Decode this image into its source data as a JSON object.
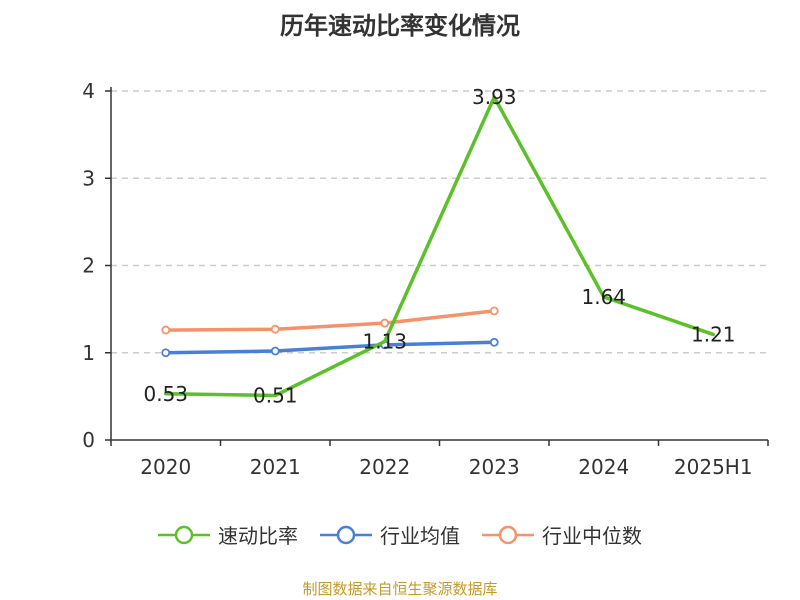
{
  "source_note": "制图数据来自恒生聚源数据库",
  "colors": {
    "source_note": "#c49a2b",
    "grid": "#cccccc",
    "axis": "#333333"
  },
  "chart_data": {
    "type": "line",
    "title": "历年速动比率变化情况",
    "xlabel": "",
    "ylabel": "",
    "categories": [
      "2020",
      "2021",
      "2022",
      "2023",
      "2024",
      "2025H1"
    ],
    "ylim": [
      0,
      4
    ],
    "yticks": [
      0,
      1,
      2,
      3,
      4
    ],
    "grid": "horizontal dashed",
    "legend_position": "bottom",
    "series": [
      {
        "name": "速动比率",
        "color": "#5cc02a",
        "values": [
          0.53,
          0.51,
          1.13,
          3.93,
          1.64,
          1.21
        ],
        "labels": [
          "0.53",
          "0.51",
          "1.13",
          "3.93",
          "1.64",
          "1.21"
        ],
        "markers_visible": false
      },
      {
        "name": "行业均值",
        "color": "#4a7fd8",
        "values": [
          1.0,
          1.02,
          1.09,
          1.12,
          null,
          null
        ],
        "markers_visible": true
      },
      {
        "name": "行业中位数",
        "color": "#f5926a",
        "values": [
          1.26,
          1.27,
          1.34,
          1.48,
          null,
          null
        ],
        "markers_visible": true
      }
    ]
  }
}
